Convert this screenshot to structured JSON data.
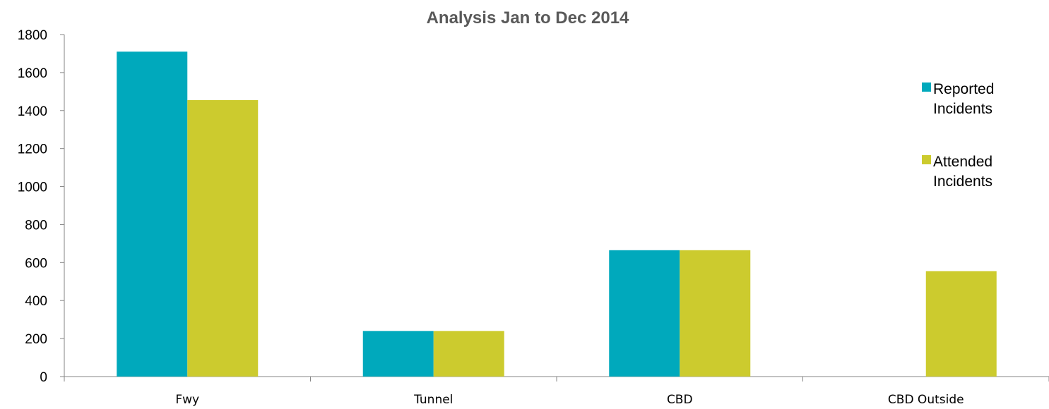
{
  "chart_data": {
    "type": "bar",
    "title": "Analysis Jan to Dec 2014",
    "xlabel": "",
    "ylabel": "",
    "categories": [
      "Fwy",
      "Tunnel",
      "CBD",
      "CBD Outside"
    ],
    "series": [
      {
        "name": "Reported Incidents",
        "name_lines": [
          "Reported",
          "Incidents"
        ],
        "color": "#00A9BC",
        "values": [
          1710,
          240,
          665,
          0
        ]
      },
      {
        "name": "Attended Incidents",
        "name_lines": [
          "Attended",
          "Incidents"
        ],
        "color": "#CCCB2E",
        "values": [
          1455,
          240,
          665,
          555
        ]
      }
    ],
    "ylim": [
      0,
      1800
    ],
    "yticks": [
      0,
      200,
      400,
      600,
      800,
      1000,
      1200,
      1400,
      1600,
      1800
    ],
    "grid": false,
    "legend_position": "right"
  }
}
